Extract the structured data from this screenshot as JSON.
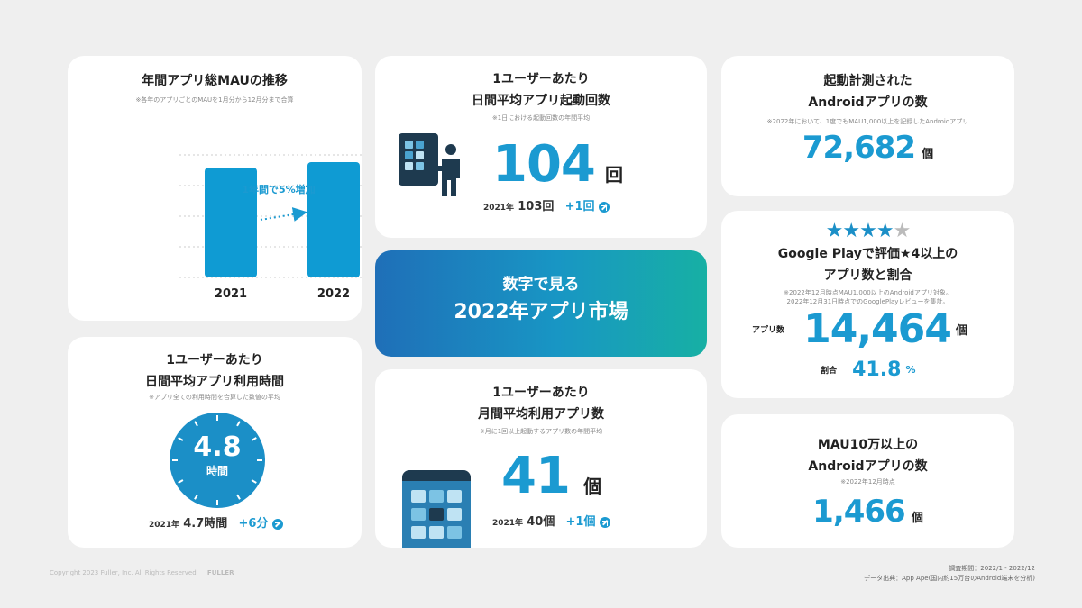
{
  "mau": {
    "title": "年間アプリ総MAUの推移",
    "note": "※各年のアプリごとのMAUを1月分から12月分まで合算",
    "growth_label": "1年間で5%増加",
    "categories": [
      "2021",
      "2022"
    ],
    "values": [
      100,
      105
    ],
    "colors": {
      "bar": "#0f9bd3",
      "arrow": "#1b9ad1"
    }
  },
  "launches": {
    "title1": "1ユーザーあたり",
    "title2": "日間平均アプリ起動回数",
    "note": "※1日における起動回数の年間平均",
    "value": "104",
    "unit": "回",
    "prev_year": "2021年",
    "prev_value": "103回",
    "delta": "+1回"
  },
  "android_launched": {
    "title1": "起動計測された",
    "title2": "Androidアプリの数",
    "note": "※2022年において、1度でもMAU1,000以上を記録したAndroidアプリ",
    "value": "72,682",
    "unit": "個"
  },
  "banner": {
    "line1": "数字で見る",
    "line2": "2022年アプリ市場"
  },
  "rating": {
    "stars_filled": 4,
    "stars_total": 5,
    "title1": "Google Playで評価★4以上の",
    "title2": "アプリ数と割合",
    "note1": "※2022年12月時点MAU1,000以上のAndroidアプリ対象。",
    "note2": "2022年12月31日時点でのGooglePlayレビューを集計。",
    "count_label": "アプリ数",
    "count": "14,464",
    "count_unit": "個",
    "ratio_label": "割合",
    "ratio": "41.8",
    "ratio_unit": "%"
  },
  "usage_time": {
    "title1": "1ユーザーあたり",
    "title2": "日間平均アプリ利用時間",
    "note": "※アプリ全ての利用時間を合算した数値の平均",
    "value": "4.8",
    "unit": "時間",
    "prev_year": "2021年",
    "prev_value": "4.7時間",
    "delta": "+6分"
  },
  "monthly_apps": {
    "title1": "1ユーザーあたり",
    "title2": "月間平均利用アプリ数",
    "note": "※月に1回以上起動するアプリ数の年間平均",
    "value": "41",
    "unit": "個",
    "prev_year": "2021年",
    "prev_value": "40個",
    "delta": "+1個"
  },
  "mau100k": {
    "title1": "MAU10万以上の",
    "title2": "Androidアプリの数",
    "note": "※2022年12月時点",
    "value": "1,466",
    "unit": "個"
  },
  "footer": {
    "copyright": "Copyright 2023 Fuller, Inc. All Rights Reserved",
    "logo": "FULLER",
    "period": "調査期間：2022/1 - 2022/12",
    "source": "データ出典：App Ape(国内約15万台のAndroid端末を分析)"
  }
}
